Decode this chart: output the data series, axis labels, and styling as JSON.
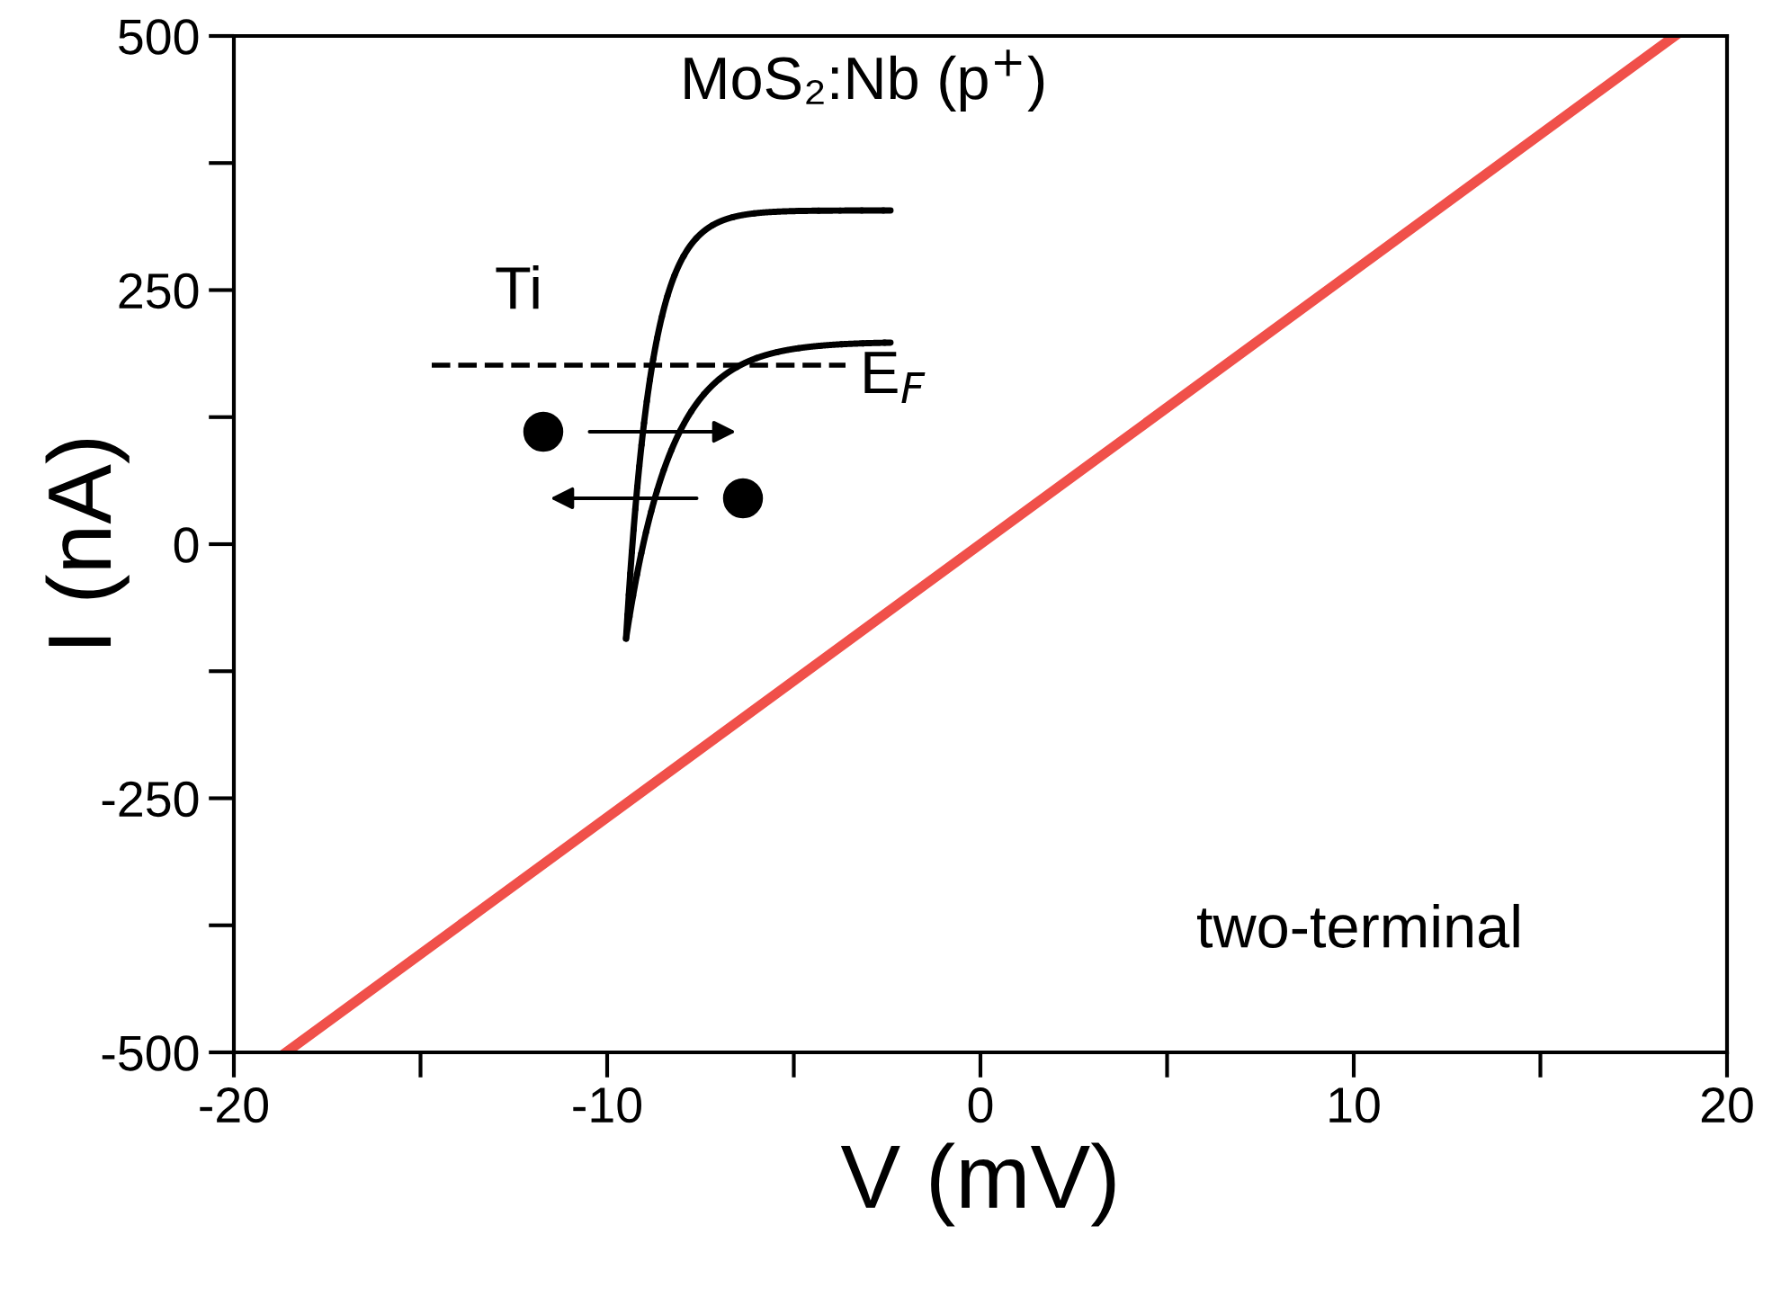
{
  "chart_data": {
    "type": "line",
    "xlabel": "V (mV)",
    "ylabel": "I (nA)",
    "x": [
      -18.6,
      18.6
    ],
    "series": [
      {
        "color": "#f0504a",
        "values": [
          -500,
          500
        ]
      }
    ],
    "xlim": [
      -20,
      20
    ],
    "ylim": [
      -500,
      500
    ],
    "xticks": [
      -20,
      {
        "value": -15,
        "label": null
      },
      -10,
      {
        "value": -5,
        "label": null
      },
      0,
      {
        "value": 5,
        "label": null
      },
      10,
      {
        "value": 15,
        "label": null
      },
      20
    ],
    "yticks": [
      -500,
      {
        "value": -375,
        "label": null
      },
      -250,
      {
        "value": -125,
        "label": null
      },
      0,
      {
        "value": 125,
        "label": null
      },
      250,
      {
        "value": 375,
        "label": null
      },
      500
    ],
    "grid": false,
    "legend": false,
    "marker": "none",
    "line_style": "solid",
    "annotations": [
      "MoS₂:Nb (p$^{+}$)",
      "Ti",
      "E$_{F}$",
      "two-terminal"
    ]
  }
}
